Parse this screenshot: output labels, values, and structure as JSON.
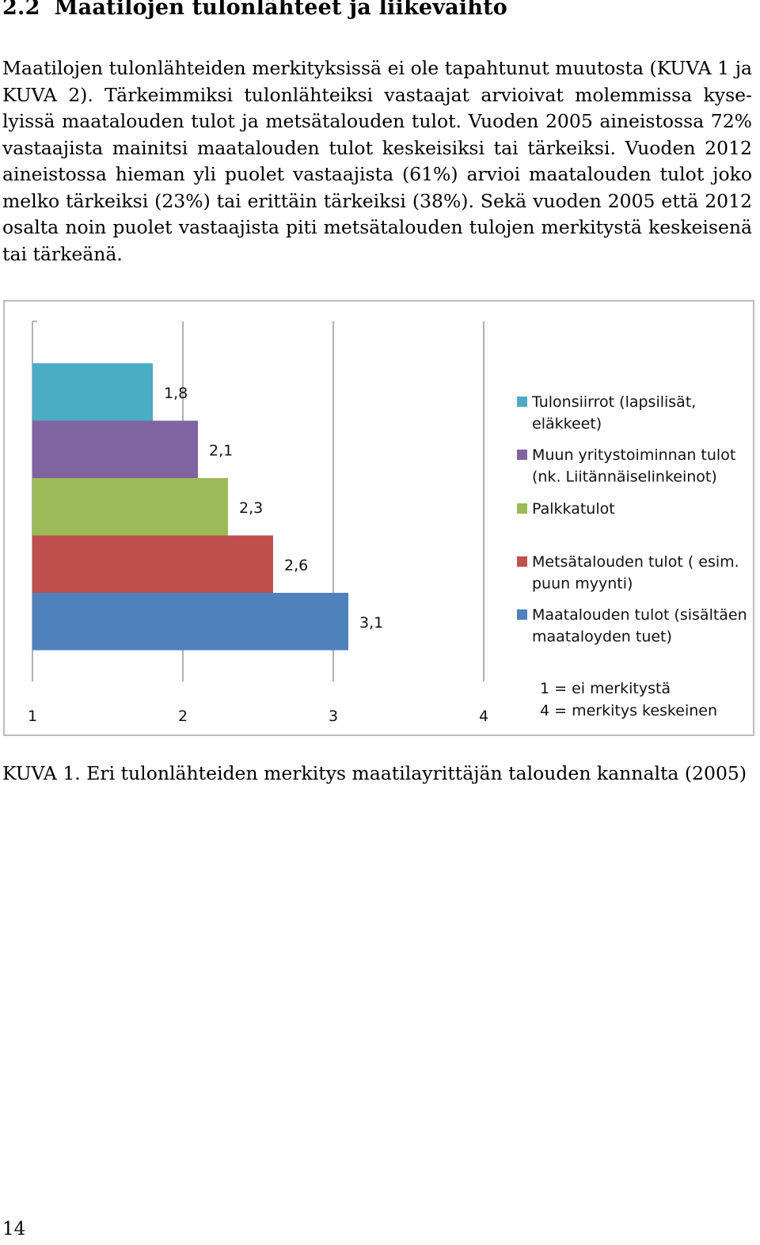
{
  "section": {
    "number": "2.2",
    "title": "Maatilojen tulonlähteet ja liikevaihto"
  },
  "paragraph": "Maatilojen tulonlähteiden merkityksissä ei ole tapahtunut muutosta (KUVA 1 ja KUVA 2). Tärkeimmiksi tulonlähteiksi vastaajat arvioivat molemmissa kyse­lyissä maatalouden tulot ja metsätalouden tulot. Vuoden 2005 aineistossa 72% vastaajista mainitsi maatalouden tulot keskeisiksi tai tärkeiksi. Vuoden 2012 aineistossa hieman yli puolet vastaajista (61%) arvioi maatalouden tulot joko melko tärkeiksi (23%) tai erittäin tärkeiksi (38%). Sekä vuoden 2005 että 2012 osalta noin puolet vastaajista piti metsätalouden tulojen merkitystä keskeisenä tai tärkeänä.",
  "caption": "KUVA 1. Eri tulonlähteiden merkitys maatilayrittäjän talouden kannalta (2005)",
  "page_number": "14",
  "chart_data": {
    "type": "bar",
    "orientation": "horizontal",
    "xlim": [
      1,
      4
    ],
    "x_ticks": [
      1,
      2,
      3,
      4
    ],
    "x_tick_labels": [
      "1",
      "2",
      "3",
      "4"
    ],
    "grid": "vertical",
    "legend_position": "right",
    "series": [
      {
        "name": "Tulonsiirrot (lapsilisät, eläkkeet)",
        "value": 1.8,
        "label": "1,8",
        "color": "#4BACC6",
        "legend_lines": [
          "Tulonsiirrot (lapsilisät,",
          "eläkkeet)"
        ]
      },
      {
        "name": "Muun yritystoiminnan tulot (nk. Liitännäiselinkeinot)",
        "value": 2.1,
        "label": "2,1",
        "color": "#8064A2",
        "legend_lines": [
          "Muun yritystoiminnan tulot",
          "(nk. Liitännäiselinkeinot)"
        ]
      },
      {
        "name": "Palkkatulot",
        "value": 2.3,
        "label": "2,3",
        "color": "#9BBB59",
        "legend_lines": [
          "Palkkatulot"
        ]
      },
      {
        "name": "Metsätalouden tulot ( esim. puun myynti)",
        "value": 2.6,
        "label": "2,6",
        "color": "#C0504D",
        "legend_lines": [
          "Metsätalouden tulot ( esim.",
          "puun myynti)"
        ]
      },
      {
        "name": "Maatalouden tulot (sisältäen maataloyden tuet)",
        "value": 3.1,
        "label": "3,1",
        "color": "#4F81BD",
        "legend_lines": [
          "Maatalouden tulot (sisältäen",
          "maataloyden tuet)"
        ]
      }
    ],
    "note_lines": [
      "1 = ei merkitystä",
      "4 = merkitys keskeinen"
    ]
  }
}
